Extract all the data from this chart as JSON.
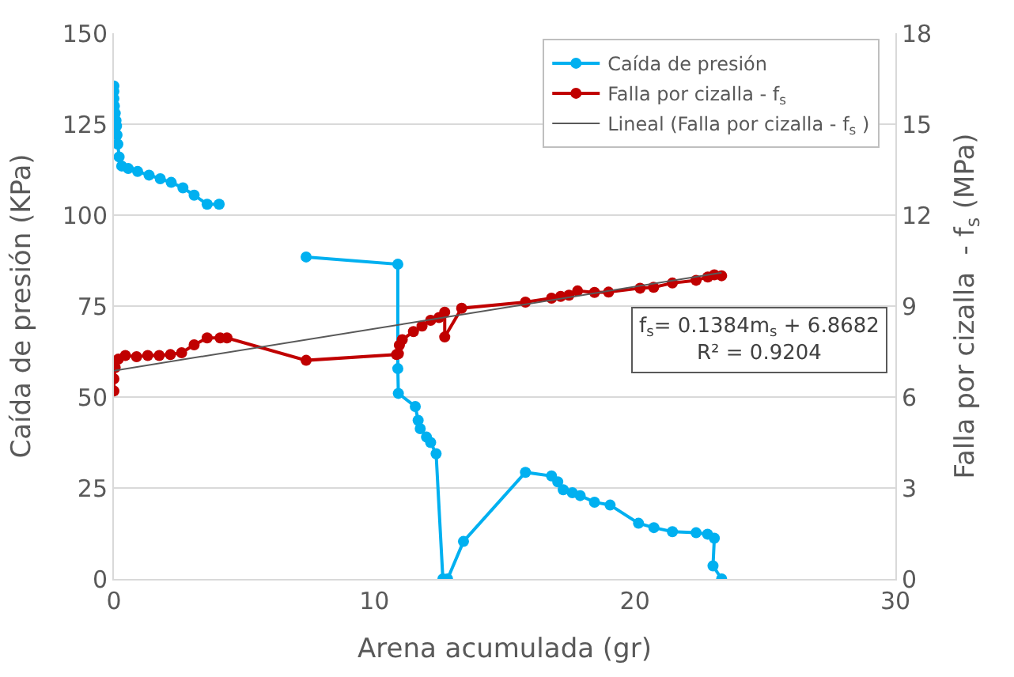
{
  "chart_data": {
    "type": "line",
    "xlabel": "Arena acumulada (gr)",
    "ylabel": "Caída de presión (KPa)",
    "y2label": "Falla por cizalla  - f$_{s}$ (MPa)",
    "xlim": [
      0,
      30
    ],
    "xticks": [
      0,
      10,
      20,
      30
    ],
    "ylim": [
      0,
      150
    ],
    "yticks": [
      0,
      25,
      50,
      75,
      100,
      125,
      150
    ],
    "y2lim": [
      0,
      18
    ],
    "y2ticks": [
      0,
      3,
      6,
      9,
      12,
      15,
      18
    ],
    "grid": "y",
    "legend": "top right",
    "marker": "circle",
    "annotations": [
      "f$_{s}$= 0.1384m$_{s}$ + 6.8682\nR² = 0.9204"
    ],
    "series": [
      {
        "name": "Caída de presión",
        "color": "#00b0f0",
        "x": [
          0,
          0,
          0,
          0.02,
          0.05,
          0.08,
          0.1,
          0.12,
          0.15,
          0.2,
          0.3,
          0.55,
          0.91,
          1.35,
          1.78,
          2.2,
          2.65,
          3.08,
          3.58,
          4.04,
          5.5,
          7.38,
          10.9,
          10.9,
          10.92,
          11.57,
          11.68,
          11.76,
          12.0,
          12.16,
          12.37,
          12.63,
          12.81,
          13.42,
          15.8,
          16.8,
          17.04,
          17.25,
          17.6,
          17.9,
          18.45,
          19.05,
          20.14,
          20.73,
          21.44,
          22.35,
          22.79,
          23.05,
          23.0,
          23.33
        ],
        "values": [
          135.5,
          134,
          132,
          130,
          128,
          126,
          124.5,
          122,
          119.5,
          116,
          113.5,
          112.8,
          112,
          111,
          110,
          109,
          107.5,
          105.5,
          103,
          103,
          null,
          88.5,
          86.5,
          57.8,
          51,
          47.4,
          43.6,
          41.3,
          39,
          37.5,
          34.4,
          0,
          0,
          10.3,
          29.3,
          28.3,
          26.7,
          24.5,
          23.7,
          22.9,
          21.1,
          20.3,
          15.3,
          14.1,
          13,
          12.7,
          12.3,
          11.2,
          3.6,
          0
        ]
      },
      {
        "name": "Falla por cizalla - f$_{s}$",
        "color": "#c00000",
        "axis": "y2",
        "x": [
          0,
          0,
          0.05,
          0.17,
          0.44,
          0.87,
          1.3,
          1.74,
          2.17,
          2.6,
          3.08,
          3.58,
          4.08,
          4.34,
          7.38,
          10.85,
          10.92,
          10.96,
          11.07,
          11.5,
          11.83,
          12.16,
          12.48,
          12.7,
          12.7,
          13.35,
          15.8,
          16.8,
          17.15,
          17.47,
          17.8,
          18.45,
          18.99,
          20.2,
          20.72,
          21.44,
          22.35,
          22.8,
          23.05,
          23.33
        ],
        "values": [
          6.2,
          6.6,
          6.97,
          7.25,
          7.37,
          7.33,
          7.37,
          7.37,
          7.4,
          7.46,
          7.72,
          7.95,
          7.95,
          7.95,
          7.21,
          7.4,
          7.43,
          7.71,
          7.89,
          8.16,
          8.34,
          8.53,
          8.62,
          8.8,
          7.98,
          8.93,
          9.13,
          9.26,
          9.32,
          9.36,
          9.5,
          9.45,
          9.46,
          9.59,
          9.62,
          9.76,
          9.85,
          9.96,
          10.03,
          10.0
        ]
      },
      {
        "name": "Lineal (Falla por cizalla - f$_{s}$ )",
        "color": "#595959",
        "axis": "y2",
        "marker": "none",
        "x": [
          0,
          23.33
        ],
        "values": [
          6.87,
          10.1
        ]
      }
    ]
  }
}
